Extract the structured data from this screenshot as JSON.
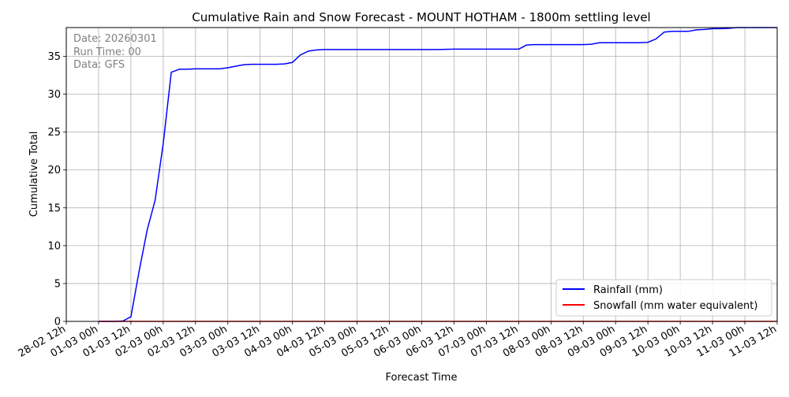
{
  "chart_data": {
    "type": "line",
    "title": "Cumulative Rain and Snow Forecast - MOUNT HOTHAM - 1800m settling level",
    "xlabel": "Forecast Time",
    "ylabel": "Cumulative Total",
    "annotation": [
      "Date: 20260301",
      "Run Time: 00",
      "Data: GFS"
    ],
    "x_ticks": [
      "28-02 12h",
      "01-03 00h",
      "01-03 12h",
      "02-03 00h",
      "02-03 12h",
      "03-03 00h",
      "03-03 12h",
      "04-03 00h",
      "04-03 12h",
      "05-03 00h",
      "05-03 12h",
      "06-03 00h",
      "06-03 12h",
      "07-03 00h",
      "07-03 12h",
      "08-03 00h",
      "08-03 12h",
      "09-03 00h",
      "09-03 12h",
      "10-03 00h",
      "10-03 12h",
      "11-03 00h",
      "11-03 12h"
    ],
    "xlim": [
      "28-02 12h",
      "11-03 12h"
    ],
    "y_ticks": [
      0,
      5,
      10,
      15,
      20,
      25,
      30,
      35
    ],
    "ylim": [
      0,
      38.8
    ],
    "grid": true,
    "legend_position": "lower-right",
    "x_unit": "hours from 28-02 12h",
    "series": [
      {
        "name": "Rainfall (mm)",
        "color": "#0000ff",
        "x": [
          12,
          15,
          18,
          21,
          24,
          27,
          30,
          33,
          36,
          39,
          42,
          45,
          48,
          51,
          54,
          57,
          60,
          63,
          66,
          69,
          72,
          75,
          78,
          81,
          84,
          87,
          90,
          93,
          96,
          99,
          102,
          105,
          108,
          114,
          120,
          126,
          132,
          138,
          144,
          150,
          156,
          162,
          168,
          171,
          174,
          177,
          180,
          186,
          192,
          195,
          198,
          204,
          210,
          213,
          216,
          219,
          222,
          225,
          228,
          231,
          234,
          237,
          240,
          243,
          246,
          249,
          252,
          255,
          258,
          264
        ],
        "values": [
          0.0,
          0.0,
          0.0,
          0.05,
          0.6,
          6.5,
          12.0,
          16.0,
          23.5,
          32.9,
          33.3,
          33.3,
          33.35,
          33.35,
          33.35,
          33.35,
          33.5,
          33.7,
          33.9,
          33.95,
          33.95,
          33.95,
          33.95,
          34.0,
          34.2,
          35.2,
          35.7,
          35.85,
          35.9,
          35.9,
          35.9,
          35.9,
          35.9,
          35.9,
          35.9,
          35.9,
          35.9,
          35.9,
          35.95,
          35.95,
          35.95,
          35.95,
          35.95,
          36.5,
          36.55,
          36.55,
          36.55,
          36.55,
          36.55,
          36.6,
          36.8,
          36.8,
          36.8,
          36.8,
          36.85,
          37.3,
          38.2,
          38.3,
          38.3,
          38.3,
          38.5,
          38.55,
          38.65,
          38.65,
          38.7,
          38.8,
          38.8,
          38.8,
          38.8,
          38.8
        ]
      },
      {
        "name": "Snowfall (mm water equivalent)",
        "color": "#ff0000",
        "x": [
          12,
          264
        ],
        "values": [
          0,
          0
        ]
      }
    ]
  }
}
